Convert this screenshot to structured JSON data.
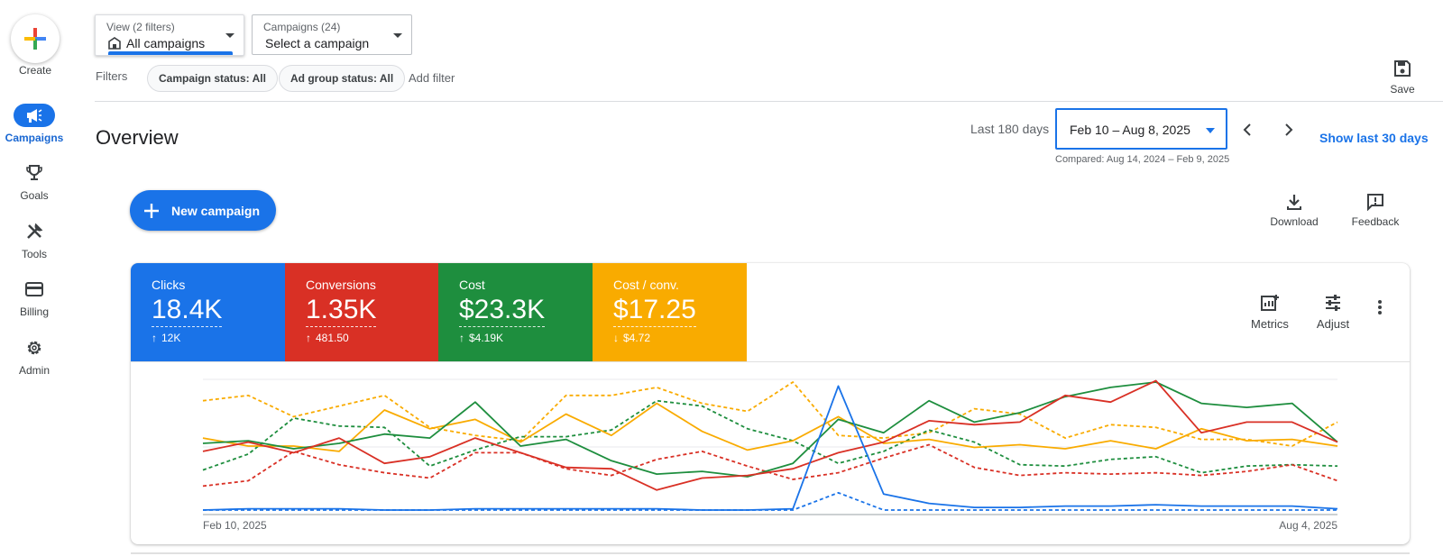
{
  "leftnav": {
    "create_label": "Create",
    "items": [
      {
        "label": "Campaigns",
        "icon": "megaphone-icon"
      },
      {
        "label": "Goals",
        "icon": "trophy-icon"
      },
      {
        "label": "Tools",
        "icon": "tools-icon"
      },
      {
        "label": "Billing",
        "icon": "credit-card-icon"
      },
      {
        "label": "Admin",
        "icon": "gear-icon"
      }
    ]
  },
  "top": {
    "view_small": "View (2 filters)",
    "view_value": "All campaigns",
    "campaigns_small": "Campaigns (24)",
    "campaigns_value": "Select a campaign",
    "filters_label": "Filters",
    "chips": [
      "Campaign status: All",
      "Ad group status: All"
    ],
    "add_filter": "Add filter",
    "save_label": "Save"
  },
  "header": {
    "title": "Overview",
    "last_days": "Last 180 days",
    "date_range": "Feb 10 – Aug 8, 2025",
    "compared": "Compared: Aug 14, 2024 – Feb 9, 2025",
    "show_last": "Show last 30 days"
  },
  "actions": {
    "new_campaign": "New campaign",
    "download": "Download",
    "feedback": "Feedback"
  },
  "card": {
    "tiles": [
      {
        "name": "Clicks",
        "value": "18.4K",
        "delta": "12K",
        "direction": "up",
        "color": "#1a73e8"
      },
      {
        "name": "Conversions",
        "value": "1.35K",
        "delta": "481.50",
        "direction": "up",
        "color": "#d93025"
      },
      {
        "name": "Cost",
        "value": "$23.3K",
        "delta": "$4.19K",
        "direction": "up",
        "color": "#1e8e3e"
      },
      {
        "name": "Cost / conv.",
        "value": "$17.25",
        "delta": "$4.72",
        "direction": "down",
        "color": "#f9ab00"
      }
    ],
    "metrics_label": "Metrics",
    "adjust_label": "Adjust"
  },
  "chart_data": {
    "type": "line",
    "x_start_label": "Feb 10, 2025",
    "x_end_label": "Aug 4, 2025",
    "points": 26,
    "series": [
      {
        "color": "#f9ab00",
        "style": "dashed",
        "values": [
          0.84,
          0.88,
          0.72,
          0.8,
          0.88,
          0.64,
          0.58,
          0.54,
          0.88,
          0.88,
          0.94,
          0.82,
          0.76,
          0.98,
          0.58,
          0.56,
          0.6,
          0.78,
          0.74,
          0.56,
          0.66,
          0.64,
          0.55,
          0.55,
          0.5,
          0.68
        ]
      },
      {
        "color": "#1e8e3e",
        "style": "dashed",
        "values": [
          0.32,
          0.44,
          0.71,
          0.65,
          0.64,
          0.35,
          0.47,
          0.57,
          0.57,
          0.62,
          0.84,
          0.8,
          0.63,
          0.54,
          0.37,
          0.46,
          0.62,
          0.53,
          0.36,
          0.35,
          0.4,
          0.42,
          0.3,
          0.35,
          0.36,
          0.35
        ]
      },
      {
        "color": "#d93025",
        "style": "dashed",
        "values": [
          0.2,
          0.24,
          0.46,
          0.36,
          0.3,
          0.26,
          0.45,
          0.45,
          0.33,
          0.28,
          0.4,
          0.46,
          0.35,
          0.25,
          0.3,
          0.41,
          0.51,
          0.34,
          0.28,
          0.3,
          0.29,
          0.3,
          0.28,
          0.31,
          0.36,
          0.24
        ]
      },
      {
        "color": "#1a73e8",
        "style": "dashed",
        "values": [
          0.02,
          0.02,
          0.02,
          0.02,
          0.02,
          0.02,
          0.02,
          0.02,
          0.02,
          0.02,
          0.02,
          0.02,
          0.02,
          0.02,
          0.15,
          0.02,
          0.02,
          0.02,
          0.02,
          0.02,
          0.02,
          0.02,
          0.02,
          0.02,
          0.02,
          0.02
        ]
      },
      {
        "color": "#f9ab00",
        "style": "solid",
        "values": [
          0.56,
          0.5,
          0.5,
          0.46,
          0.77,
          0.63,
          0.7,
          0.53,
          0.74,
          0.58,
          0.82,
          0.61,
          0.47,
          0.54,
          0.72,
          0.52,
          0.55,
          0.49,
          0.51,
          0.48,
          0.54,
          0.48,
          0.63,
          0.54,
          0.55,
          0.5
        ]
      },
      {
        "color": "#1e8e3e",
        "style": "solid",
        "values": [
          0.52,
          0.54,
          0.48,
          0.52,
          0.59,
          0.56,
          0.83,
          0.5,
          0.55,
          0.39,
          0.29,
          0.31,
          0.27,
          0.37,
          0.7,
          0.6,
          0.84,
          0.68,
          0.75,
          0.87,
          0.94,
          0.98,
          0.82,
          0.79,
          0.82,
          0.53
        ]
      },
      {
        "color": "#d93025",
        "style": "solid",
        "values": [
          0.46,
          0.53,
          0.45,
          0.56,
          0.37,
          0.42,
          0.56,
          0.45,
          0.34,
          0.33,
          0.17,
          0.26,
          0.28,
          0.33,
          0.45,
          0.53,
          0.69,
          0.66,
          0.68,
          0.88,
          0.83,
          0.99,
          0.6,
          0.68,
          0.68,
          0.53
        ]
      },
      {
        "color": "#1a73e8",
        "style": "solid",
        "values": [
          0.02,
          0.03,
          0.03,
          0.03,
          0.02,
          0.02,
          0.03,
          0.03,
          0.03,
          0.03,
          0.03,
          0.02,
          0.02,
          0.03,
          0.95,
          0.14,
          0.07,
          0.04,
          0.04,
          0.05,
          0.05,
          0.06,
          0.05,
          0.05,
          0.05,
          0.03
        ]
      }
    ]
  }
}
